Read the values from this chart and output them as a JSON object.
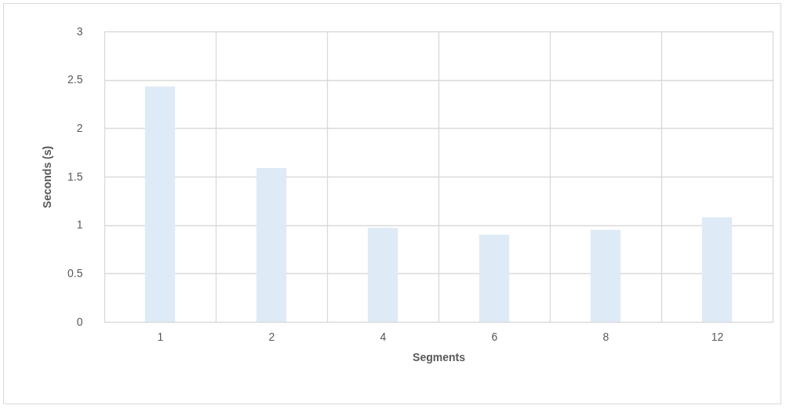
{
  "chart_data": {
    "type": "bar",
    "xlabel": "Segments",
    "ylabel": "Seconds (s)",
    "categories": [
      "1",
      "2",
      "4",
      "6",
      "8",
      "12"
    ],
    "series": [
      {
        "color": "#deeaf6",
        "values": [
          2.43,
          1.59,
          0.97,
          0.9,
          0.95,
          1.08
        ]
      }
    ],
    "ylim": [
      0,
      3
    ],
    "yticks": [
      0,
      0.5,
      1,
      1.5,
      2,
      2.5,
      3
    ],
    "grid": true
  }
}
